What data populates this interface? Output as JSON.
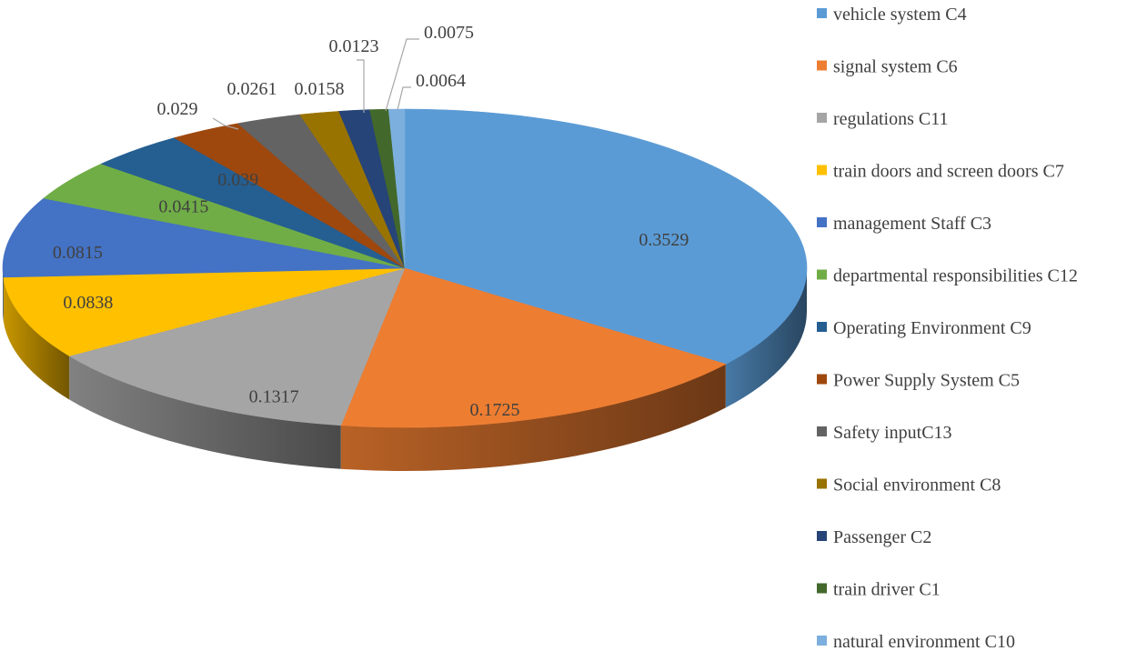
{
  "chart_data": {
    "type": "pie",
    "style": "3d",
    "legend_position": "right",
    "categories": [
      "vehicle system C4",
      "signal system C6",
      "regulations C11",
      "train doors and screen doors C7",
      "management Staff C3",
      "departmental responsibilities C12",
      "Operating Environment C9",
      "Power Supply System C5",
      "Safety inputC13",
      "Social environment C8",
      "Passenger C2",
      "train driver C1",
      "natural environment C10"
    ],
    "values": [
      0.3529,
      0.1725,
      0.1317,
      0.0838,
      0.0815,
      0.0415,
      0.039,
      0.029,
      0.0261,
      0.0158,
      0.0123,
      0.0075,
      0.0064
    ],
    "labels": [
      "0.3529",
      "0.1725",
      "0.1317",
      "0.0838",
      "0.0815",
      "0.0415",
      "0.039",
      "0.029",
      "0.0261",
      "0.0158",
      "0.0123",
      "0.0075",
      "0.0064"
    ],
    "colors": [
      "#5b9bd5",
      "#ed7d31",
      "#a5a5a5",
      "#ffc000",
      "#4472c4",
      "#70ad47",
      "#255e91",
      "#9e480e",
      "#636363",
      "#997300",
      "#264478",
      "#43682b",
      "#7cafdd"
    ]
  }
}
